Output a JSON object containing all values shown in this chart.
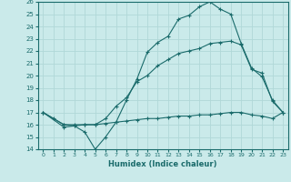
{
  "xlabel": "Humidex (Indice chaleur)",
  "xlim": [
    -0.5,
    23.5
  ],
  "ylim": [
    14,
    26
  ],
  "yticks": [
    14,
    15,
    16,
    17,
    18,
    19,
    20,
    21,
    22,
    23,
    24,
    25,
    26
  ],
  "xticks": [
    0,
    1,
    2,
    3,
    4,
    5,
    6,
    7,
    8,
    9,
    10,
    11,
    12,
    13,
    14,
    15,
    16,
    17,
    18,
    19,
    20,
    21,
    22,
    23
  ],
  "bg_color": "#caeaea",
  "line_color": "#1a6b6b",
  "grid_color": "#b0d8d8",
  "line1": {
    "x": [
      0,
      1,
      2,
      3,
      4,
      5,
      6,
      7,
      8,
      9,
      10,
      11,
      12,
      13,
      14,
      15,
      16,
      17,
      18,
      19,
      20,
      21,
      22,
      23
    ],
    "y": [
      17.0,
      16.5,
      16.0,
      15.9,
      15.4,
      14.0,
      15.0,
      16.2,
      18.0,
      19.7,
      21.9,
      22.7,
      23.2,
      24.6,
      24.9,
      25.6,
      26.0,
      25.4,
      25.0,
      22.6,
      20.6,
      19.9,
      18.0,
      17.0
    ]
  },
  "line2": {
    "x": [
      0,
      2,
      3,
      4,
      5,
      6,
      7,
      8,
      9,
      10,
      11,
      12,
      13,
      14,
      15,
      16,
      17,
      18,
      19,
      20,
      21,
      22,
      23
    ],
    "y": [
      17.0,
      16.0,
      16.0,
      16.0,
      16.0,
      16.5,
      17.5,
      18.2,
      19.5,
      20.0,
      20.8,
      21.3,
      21.8,
      22.0,
      22.2,
      22.6,
      22.7,
      22.8,
      22.5,
      20.5,
      20.2,
      17.9,
      17.0
    ]
  },
  "line3": {
    "x": [
      0,
      2,
      3,
      4,
      5,
      6,
      7,
      8,
      9,
      10,
      11,
      12,
      13,
      14,
      15,
      16,
      17,
      18,
      19,
      20,
      21,
      22,
      23
    ],
    "y": [
      17.0,
      15.8,
      15.9,
      16.0,
      16.0,
      16.1,
      16.2,
      16.3,
      16.4,
      16.5,
      16.5,
      16.6,
      16.7,
      16.7,
      16.8,
      16.8,
      16.9,
      17.0,
      17.0,
      16.8,
      16.7,
      16.5,
      17.0
    ]
  }
}
